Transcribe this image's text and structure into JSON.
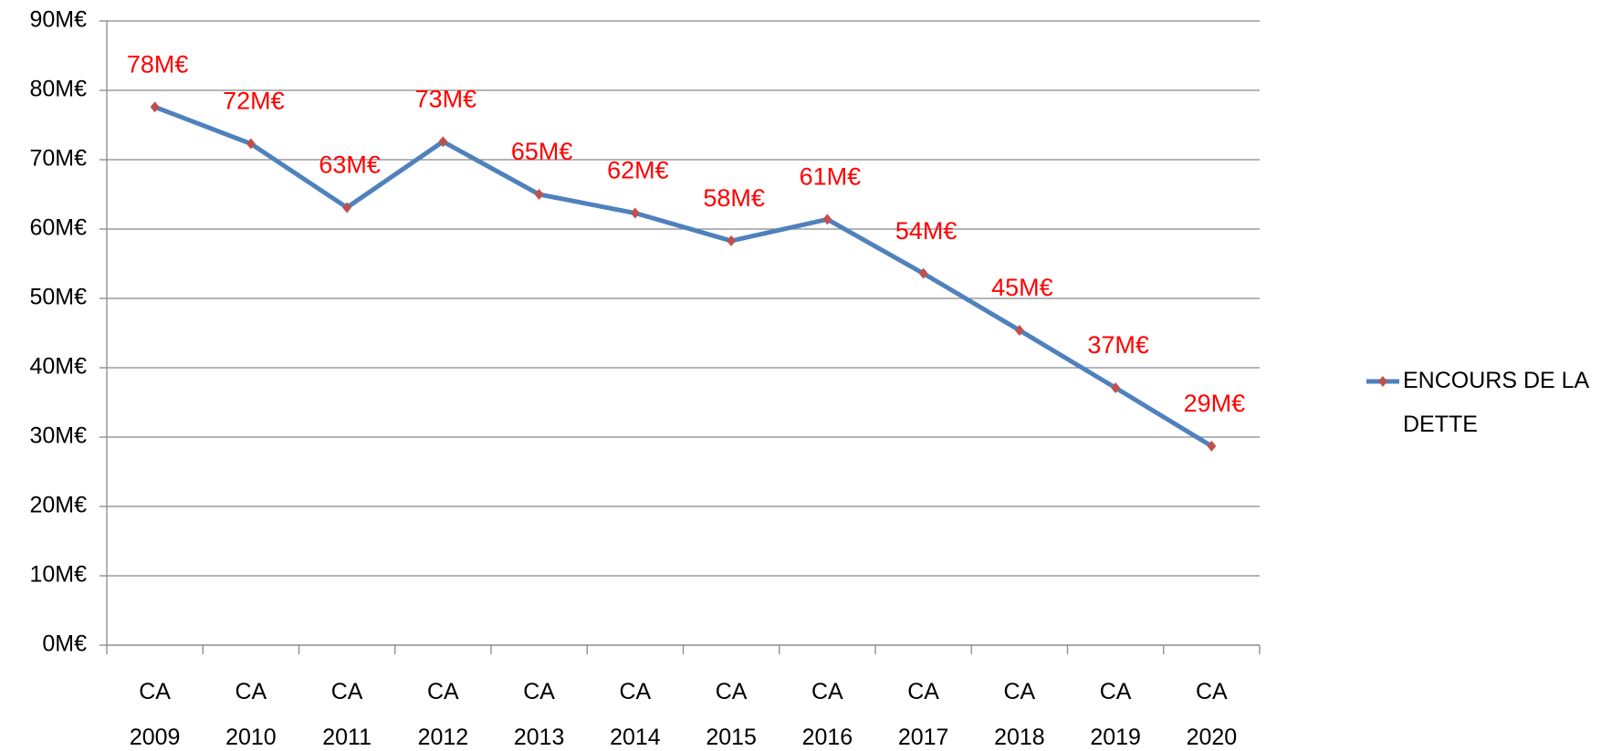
{
  "chart_data": {
    "type": "line",
    "categories": [
      "CA 2009",
      "CA 2010",
      "CA 2011",
      "CA 2012",
      "CA 2013",
      "CA 2014",
      "CA 2015",
      "CA 2016",
      "CA 2017",
      "CA 2018",
      "CA 2019",
      "CA 2020"
    ],
    "series": [
      {
        "name": "ENCOURS DE LA DETTE",
        "color": "#4f81bd",
        "marker_color": "#c0504d",
        "values": [
          77.6,
          72.3,
          63.1,
          72.6,
          65.0,
          62.3,
          58.3,
          61.4,
          53.6,
          45.4,
          37.1,
          28.7
        ],
        "value_labels": [
          "78M€",
          "72M€",
          "63M€",
          "73M€",
          "65M€",
          "62M€",
          "58M€",
          "61M€",
          "54M€",
          "45M€",
          "37M€",
          "29M€"
        ],
        "label_color": "#ff0000"
      }
    ],
    "ylim": [
      0,
      90
    ],
    "yticks": [
      {
        "value": 0,
        "label": "0M€"
      },
      {
        "value": 10,
        "label": "10M€"
      },
      {
        "value": 20,
        "label": "20M€"
      },
      {
        "value": 30,
        "label": "30M€"
      },
      {
        "value": 40,
        "label": "40M€"
      },
      {
        "value": 50,
        "label": "50M€"
      },
      {
        "value": 60,
        "label": "60M€"
      },
      {
        "value": 70,
        "label": "70M€"
      },
      {
        "value": 80,
        "label": "80M€"
      },
      {
        "value": 90,
        "label": "90M€"
      }
    ],
    "grid": true,
    "legend": "right"
  }
}
